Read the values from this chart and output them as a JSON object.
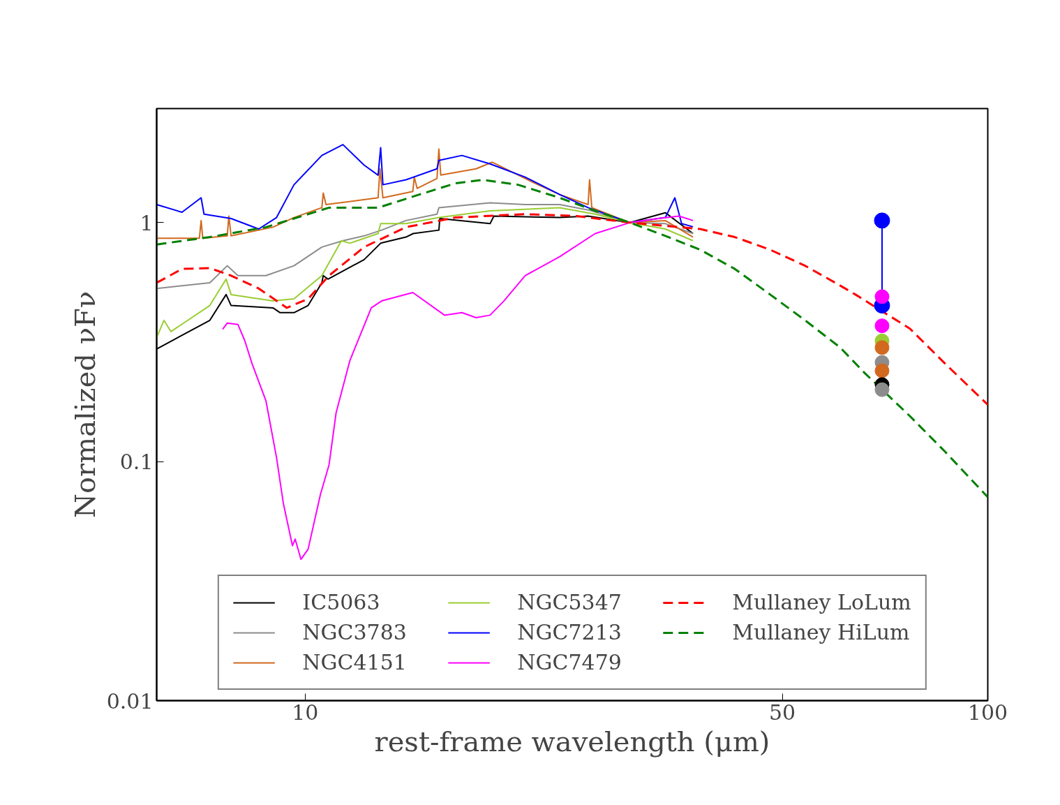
{
  "chart_data": {
    "type": "line",
    "xlabel": "rest-frame wavelength (μm)",
    "ylabel": "Normalized νFν",
    "log": "xy",
    "xlim": [
      6.06,
      100
    ],
    "ylim": [
      0.01,
      3
    ],
    "xticks": [
      10,
      50,
      100
    ],
    "yticks": [
      0.01,
      0.1,
      1
    ],
    "grid": false,
    "legend": "bottom",
    "marker": "none",
    "series": [
      {
        "name": "IC5063",
        "color": "#000000",
        "line_style": "solid",
        "x": [
          6.06,
          7.25,
          7.66,
          7.79,
          8.97,
          9.19,
          9.63,
          10.1,
          10.58,
          10.63,
          10.8,
          12.2,
          12.9,
          14.05,
          14.4,
          15.7,
          15.75,
          18.66,
          18.9,
          23.6,
          25.97,
          29.9,
          33.7,
          37.0
        ],
        "values": [
          0.296,
          0.39,
          0.5,
          0.45,
          0.44,
          0.42,
          0.42,
          0.45,
          0.56,
          0.6,
          0.58,
          0.7,
          0.82,
          0.87,
          0.9,
          0.93,
          1.04,
          0.99,
          1.065,
          1.05,
          1.065,
          1.0,
          1.1,
          0.9
        ]
      },
      {
        "name": "NGC3783",
        "color": "#8c8c8c",
        "line_style": "solid",
        "x": [
          6.06,
          7.25,
          7.69,
          7.97,
          8.76,
          9.63,
          10.58,
          11.36,
          12.2,
          12.94,
          14.05,
          15.6,
          15.7,
          18.66,
          21.0,
          23.6,
          25.97,
          29.9,
          33.7,
          37.0
        ],
        "values": [
          0.53,
          0.56,
          0.66,
          0.6,
          0.6,
          0.66,
          0.79,
          0.84,
          0.88,
          0.93,
          1.02,
          1.085,
          1.155,
          1.21,
          1.19,
          1.19,
          1.13,
          1.0,
          0.99,
          0.9
        ]
      },
      {
        "name": "NGC4151",
        "color": "#d2691e",
        "line_style": "solid",
        "x": [
          6.06,
          7.0,
          7.04,
          7.08,
          7.69,
          7.73,
          7.79,
          8.97,
          9.63,
          10.58,
          10.63,
          10.73,
          12.79,
          12.87,
          13.0,
          14.38,
          14.45,
          14.59,
          15.6,
          15.7,
          15.8,
          17.8,
          18.8,
          21.5,
          23.6,
          25.97,
          26.1,
          26.3,
          29.9,
          33.7,
          37.0
        ],
        "values": [
          0.86,
          0.86,
          1.02,
          0.86,
          0.88,
          1.065,
          0.88,
          0.957,
          1.05,
          1.155,
          1.33,
          1.19,
          1.27,
          1.68,
          1.27,
          1.35,
          1.55,
          1.39,
          1.53,
          2.03,
          1.58,
          1.68,
          1.79,
          1.48,
          1.31,
          1.19,
          1.51,
          1.155,
          1.0,
          1.02,
          0.87
        ]
      },
      {
        "name": "NGC5347",
        "color": "#9acd32",
        "line_style": "solid",
        "x": [
          6.06,
          6.21,
          6.36,
          7.25,
          7.66,
          7.79,
          8.97,
          9.63,
          10.58,
          11.3,
          11.63,
          12.79,
          12.9,
          14.05,
          15.7,
          18.66,
          23.6,
          26.6,
          29.9,
          33.7,
          37.0
        ],
        "values": [
          0.33,
          0.39,
          0.35,
          0.45,
          0.58,
          0.5,
          0.47,
          0.48,
          0.6,
          0.84,
          0.82,
          0.9,
          0.99,
          0.99,
          1.05,
          1.12,
          1.155,
          1.085,
          1.0,
          0.94,
          0.84
        ]
      },
      {
        "name": "NGC7213",
        "color": "#0000ff",
        "line_style": "solid",
        "x": [
          6.06,
          6.6,
          7.04,
          7.11,
          7.79,
          8.55,
          9.08,
          9.63,
          10.58,
          11.36,
          12.2,
          12.79,
          12.9,
          13.0,
          14.05,
          15.6,
          15.7,
          16.97,
          18.66,
          21.0,
          23.6,
          25.97,
          29.9,
          33.7,
          34.8,
          35.6,
          37.0
        ],
        "values": [
          1.19,
          1.105,
          1.27,
          1.085,
          1.04,
          0.94,
          1.05,
          1.44,
          1.91,
          2.12,
          1.74,
          1.58,
          2.06,
          1.44,
          1.51,
          1.68,
          1.82,
          1.91,
          1.76,
          1.55,
          1.31,
          1.155,
          1.0,
          1.05,
          1.27,
          0.99,
          0.96
        ]
      },
      {
        "name": "NGC7479",
        "color": "#ff00ff",
        "line_style": "solid",
        "x": [
          7.57,
          7.69,
          7.97,
          8.16,
          8.36,
          8.76,
          9.08,
          9.29,
          9.58,
          9.67,
          9.86,
          10.1,
          10.53,
          10.84,
          11.1,
          11.63,
          12.5,
          12.94,
          14.38,
          16.0,
          16.97,
          17.8,
          18.66,
          19.55,
          21.0,
          23.6,
          26.6,
          29.9,
          32.9,
          35.3,
          37.0
        ],
        "values": [
          0.358,
          0.38,
          0.375,
          0.32,
          0.257,
          0.18,
          0.104,
          0.067,
          0.0445,
          0.0474,
          0.039,
          0.043,
          0.073,
          0.097,
          0.16,
          0.265,
          0.44,
          0.47,
          0.51,
          0.41,
          0.42,
          0.4,
          0.41,
          0.47,
          0.6,
          0.72,
          0.9,
          1.0,
          1.04,
          1.065,
          1.02
        ]
      },
      {
        "name": "Mullaney LoLum",
        "color": "#ff0000",
        "line_style": "dashed",
        "x": [
          6.06,
          6.6,
          7.25,
          7.79,
          8.55,
          9.4,
          10.1,
          10.84,
          12.2,
          14.05,
          16.6,
          21.0,
          25.0,
          29.9,
          37.9,
          42.6,
          48.0,
          54.0,
          60.8,
          64.0,
          76.9,
          86.6,
          100
        ],
        "values": [
          0.56,
          0.64,
          0.645,
          0.6,
          0.53,
          0.44,
          0.48,
          0.6,
          0.79,
          0.957,
          1.05,
          1.085,
          1.065,
          1.0,
          0.94,
          0.87,
          0.77,
          0.66,
          0.545,
          0.5,
          0.36,
          0.257,
          0.173
        ]
      },
      {
        "name": "Mullaney HiLum",
        "color": "#008000",
        "line_style": "dashed",
        "x": [
          6.06,
          7.25,
          8.76,
          10.1,
          10.84,
          12.79,
          14.7,
          16.6,
          18.2,
          20.5,
          23.6,
          26.6,
          29.9,
          33.7,
          37.9,
          42.6,
          48.0,
          54.0,
          60.8,
          66.0,
          76.9,
          86.6,
          100
        ],
        "values": [
          0.81,
          0.87,
          0.957,
          1.085,
          1.155,
          1.155,
          1.31,
          1.46,
          1.51,
          1.44,
          1.27,
          1.12,
          1.0,
          0.88,
          0.77,
          0.64,
          0.5,
          0.39,
          0.3,
          0.235,
          0.155,
          0.11,
          0.071
        ]
      },
      {
        "type": "line",
        "marker": "circle",
        "color": "#0000ff",
        "line_style": "solid",
        "x": [
          70,
          70
        ],
        "values": [
          1.02,
          0.45
        ]
      },
      {
        "type": "scatter",
        "marker": "circle",
        "x": [
          70,
          70,
          70,
          70,
          70,
          70,
          70,
          70
        ],
        "values": [
          0.49,
          0.37,
          0.32,
          0.3,
          0.26,
          0.24,
          0.21,
          0.2
        ],
        "colors": [
          "#ff00ff",
          "#ff00ff",
          "#9acd32",
          "#d2691e",
          "#8c8c8c",
          "#d2691e",
          "#000000",
          "#8c8c8c"
        ]
      }
    ]
  }
}
